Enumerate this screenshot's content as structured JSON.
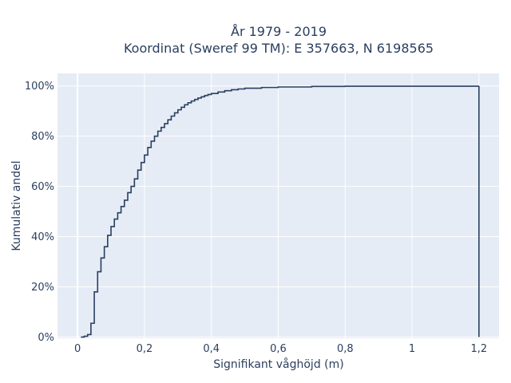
{
  "chart_data": {
    "type": "line",
    "step": true,
    "title": [
      "År 1979 - 2019",
      "Koordinat (Sweref 99 TM): E 357663, N 6198565"
    ],
    "xlabel": "Signifikant våghöjd (m)",
    "ylabel": "Kumulativ andel",
    "xlim": [
      -0.06,
      1.26
    ],
    "ylim": [
      -0.005,
      1.05
    ],
    "x_ticks": [
      0,
      0.2,
      0.4,
      0.6,
      0.8,
      1,
      1.2
    ],
    "x_tick_labels": [
      "0",
      "0,2",
      "0,4",
      "0,6",
      "0,8",
      "1",
      "1,2"
    ],
    "y_ticks": [
      0,
      0.2,
      0.4,
      0.6,
      0.8,
      1
    ],
    "y_tick_labels": [
      "0%",
      "20%",
      "40%",
      "60%",
      "80%",
      "100%"
    ],
    "grid": true,
    "plot_background": "#e5ecf6",
    "line_color": "#2a3f5f",
    "series": [
      {
        "x": [
          0.01,
          0.02,
          0.03,
          0.04,
          0.05,
          0.06,
          0.07,
          0.08,
          0.09,
          0.1,
          0.11,
          0.12,
          0.13,
          0.14,
          0.15,
          0.16,
          0.17,
          0.18,
          0.19,
          0.2,
          0.21,
          0.22,
          0.23,
          0.24,
          0.25,
          0.26,
          0.27,
          0.28,
          0.29,
          0.3,
          0.31,
          0.32,
          0.33,
          0.34,
          0.35,
          0.36,
          0.37,
          0.38,
          0.39,
          0.4,
          0.42,
          0.44,
          0.46,
          0.48,
          0.5,
          0.55,
          0.6,
          0.7,
          0.8,
          1.2
        ],
        "y": [
          0.0,
          0.003,
          0.01,
          0.055,
          0.18,
          0.26,
          0.315,
          0.36,
          0.405,
          0.44,
          0.47,
          0.495,
          0.52,
          0.545,
          0.575,
          0.6,
          0.63,
          0.665,
          0.695,
          0.725,
          0.755,
          0.78,
          0.8,
          0.82,
          0.835,
          0.85,
          0.865,
          0.88,
          0.893,
          0.905,
          0.915,
          0.925,
          0.933,
          0.94,
          0.946,
          0.952,
          0.957,
          0.962,
          0.966,
          0.97,
          0.976,
          0.981,
          0.985,
          0.988,
          0.991,
          0.994,
          0.996,
          0.998,
          0.999,
          1.0
        ]
      }
    ]
  }
}
